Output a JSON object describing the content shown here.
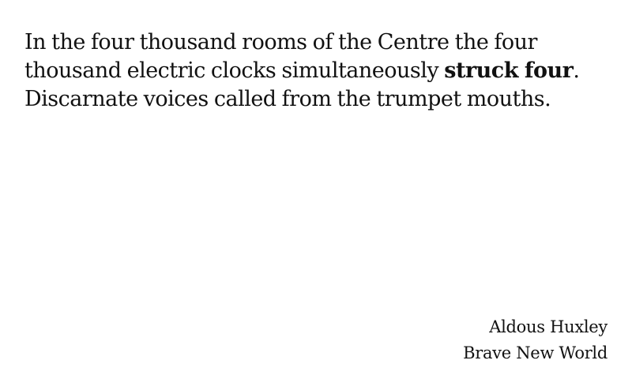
{
  "quote": {
    "line1": "In the four thousand rooms of the Centre the four",
    "line2_before": "thousand electric clocks simultaneously ",
    "line2_bold": "struck four",
    "line2_after": ".",
    "line3": "Discarnate voices called from the trumpet mouths."
  },
  "attribution": {
    "author": "Aldous Huxley",
    "work": "Brave New World"
  }
}
